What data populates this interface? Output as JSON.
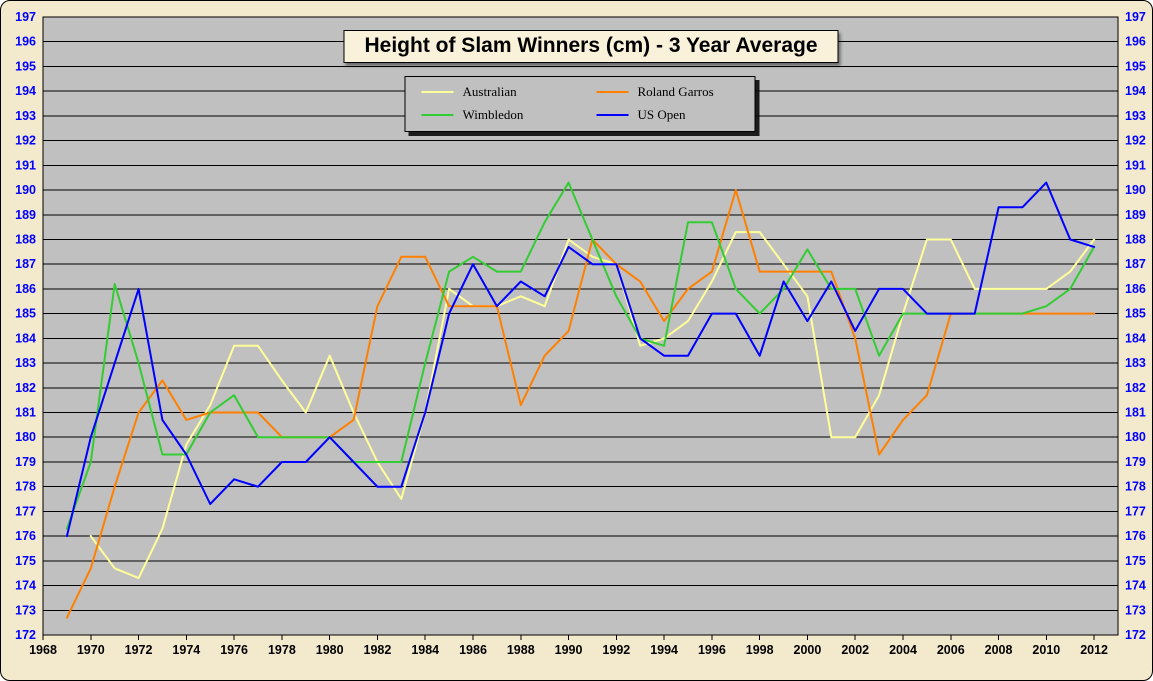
{
  "title": "Height of Slam Winners (cm) - 3 Year Average",
  "colors": {
    "page_background": "#f3e9cd",
    "plot_background": "#c0c0c0",
    "gridline": "#000000",
    "y_tick_label": "#0000ff",
    "x_tick_label": "#000000",
    "border": "#000000"
  },
  "chart_data": {
    "type": "line",
    "title": "Height of Slam Winners (cm) - 3 Year Average",
    "xlabel": "",
    "ylabel": "",
    "grid": true,
    "legend_position": "top-center",
    "y_min": 172,
    "y_max": 197,
    "y_step": 1,
    "x_min": 1968,
    "x_max": 2013,
    "x_ticks": [
      1968,
      1970,
      1972,
      1974,
      1976,
      1978,
      1980,
      1982,
      1984,
      1986,
      1988,
      1990,
      1992,
      1994,
      1996,
      1998,
      2000,
      2002,
      2004,
      2006,
      2008,
      2010,
      2012
    ],
    "x_step": 1,
    "series": [
      {
        "name": "Australian",
        "color": "#ffff99",
        "x_start": 1970,
        "values": [
          176.0,
          174.7,
          174.3,
          176.3,
          179.7,
          181.3,
          183.7,
          183.7,
          182.3,
          181.0,
          183.3,
          181.0,
          179.0,
          177.5,
          181.0,
          186.0,
          185.3,
          185.3,
          185.7,
          185.3,
          188.0,
          187.3,
          187.0,
          183.7,
          184.0,
          184.7,
          186.3,
          188.3,
          188.3,
          187.0,
          185.7,
          180.0,
          180.0,
          181.7,
          185.0,
          188.0,
          188.0,
          186.0,
          186.0,
          186.0,
          186.0,
          186.7,
          188.0
        ]
      },
      {
        "name": "Roland Garros",
        "color": "#ff8000",
        "x_start": 1969,
        "values": [
          172.7,
          174.7,
          178.0,
          181.0,
          182.3,
          180.7,
          181.0,
          181.0,
          181.0,
          180.0,
          180.0,
          180.0,
          180.7,
          185.3,
          187.3,
          187.3,
          185.3,
          185.3,
          185.3,
          181.3,
          183.3,
          184.3,
          188.0,
          187.0,
          186.3,
          184.7,
          186.0,
          186.7,
          190.0,
          186.7,
          186.7,
          186.7,
          186.7,
          184.0,
          179.3,
          180.7,
          181.7,
          185.0,
          185.0,
          185.0,
          185.0,
          185.0,
          185.0,
          185.0
        ]
      },
      {
        "name": "Wimbledon",
        "color": "#33cc33",
        "x_start": 1969,
        "values": [
          176.3,
          179.0,
          186.2,
          183.0,
          179.3,
          179.3,
          181.0,
          181.7,
          180.0,
          180.0,
          180.0,
          180.0,
          179.0,
          179.0,
          179.0,
          183.0,
          186.7,
          187.3,
          186.7,
          186.7,
          188.7,
          190.3,
          188.0,
          185.7,
          184.0,
          183.7,
          188.7,
          188.7,
          186.0,
          185.0,
          186.0,
          187.6,
          186.0,
          186.0,
          183.3,
          185.0,
          185.0,
          185.0,
          185.0,
          185.0,
          185.0,
          185.3,
          186.0,
          187.7
        ]
      },
      {
        "name": "US Open",
        "color": "#0000ff",
        "x_start": 1969,
        "values": [
          176.0,
          180.0,
          183.0,
          186.0,
          180.7,
          179.3,
          177.3,
          178.3,
          178.0,
          179.0,
          179.0,
          180.0,
          179.0,
          178.0,
          178.0,
          181.0,
          185.0,
          187.0,
          185.3,
          186.3,
          185.7,
          187.7,
          187.0,
          187.0,
          184.0,
          183.3,
          183.3,
          185.0,
          185.0,
          183.3,
          186.3,
          184.7,
          186.3,
          184.3,
          186.0,
          186.0,
          185.0,
          185.0,
          185.0,
          189.3,
          189.3,
          190.3,
          188.0,
          187.7
        ]
      }
    ]
  }
}
